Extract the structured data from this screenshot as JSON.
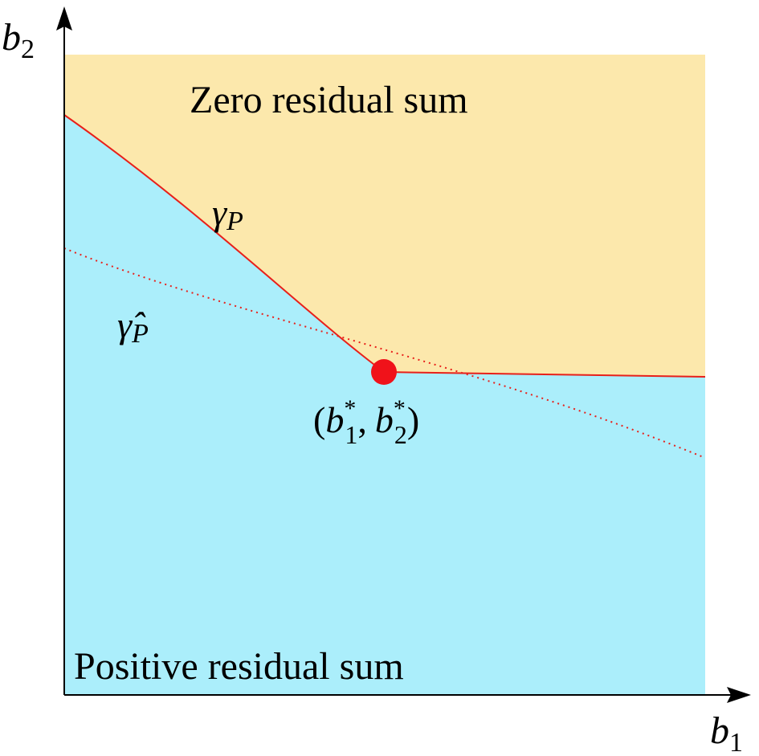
{
  "labels": {
    "zero_region": "Zero residual sum",
    "positive_region": "Positive residual sum",
    "gamma_p": "γP",
    "gamma_hat_p": "γ̂P",
    "point": "(b1*, b2*)"
  },
  "axes": {
    "x_var": "b",
    "x_sub": "1",
    "y_var": "b",
    "y_sub": "2"
  },
  "curves": {
    "gamma": {
      "base": "γ",
      "sub": "P",
      "style": "solid"
    },
    "gamma_hat": {
      "base": "γ̂",
      "sub": "P",
      "style": "dotted"
    }
  },
  "point": {
    "open": "(",
    "var1": "b",
    "sub1": "1",
    "sup1": "*",
    "sep": ",",
    "var2": "b",
    "sub2": "2",
    "sup2": "*",
    "close": ")"
  },
  "colors": {
    "zero_region": "#FCE8AC",
    "positive_region": "#ABEEFB",
    "curve": "#E8201A",
    "point": "#F0121A",
    "axis": "#000000"
  }
}
